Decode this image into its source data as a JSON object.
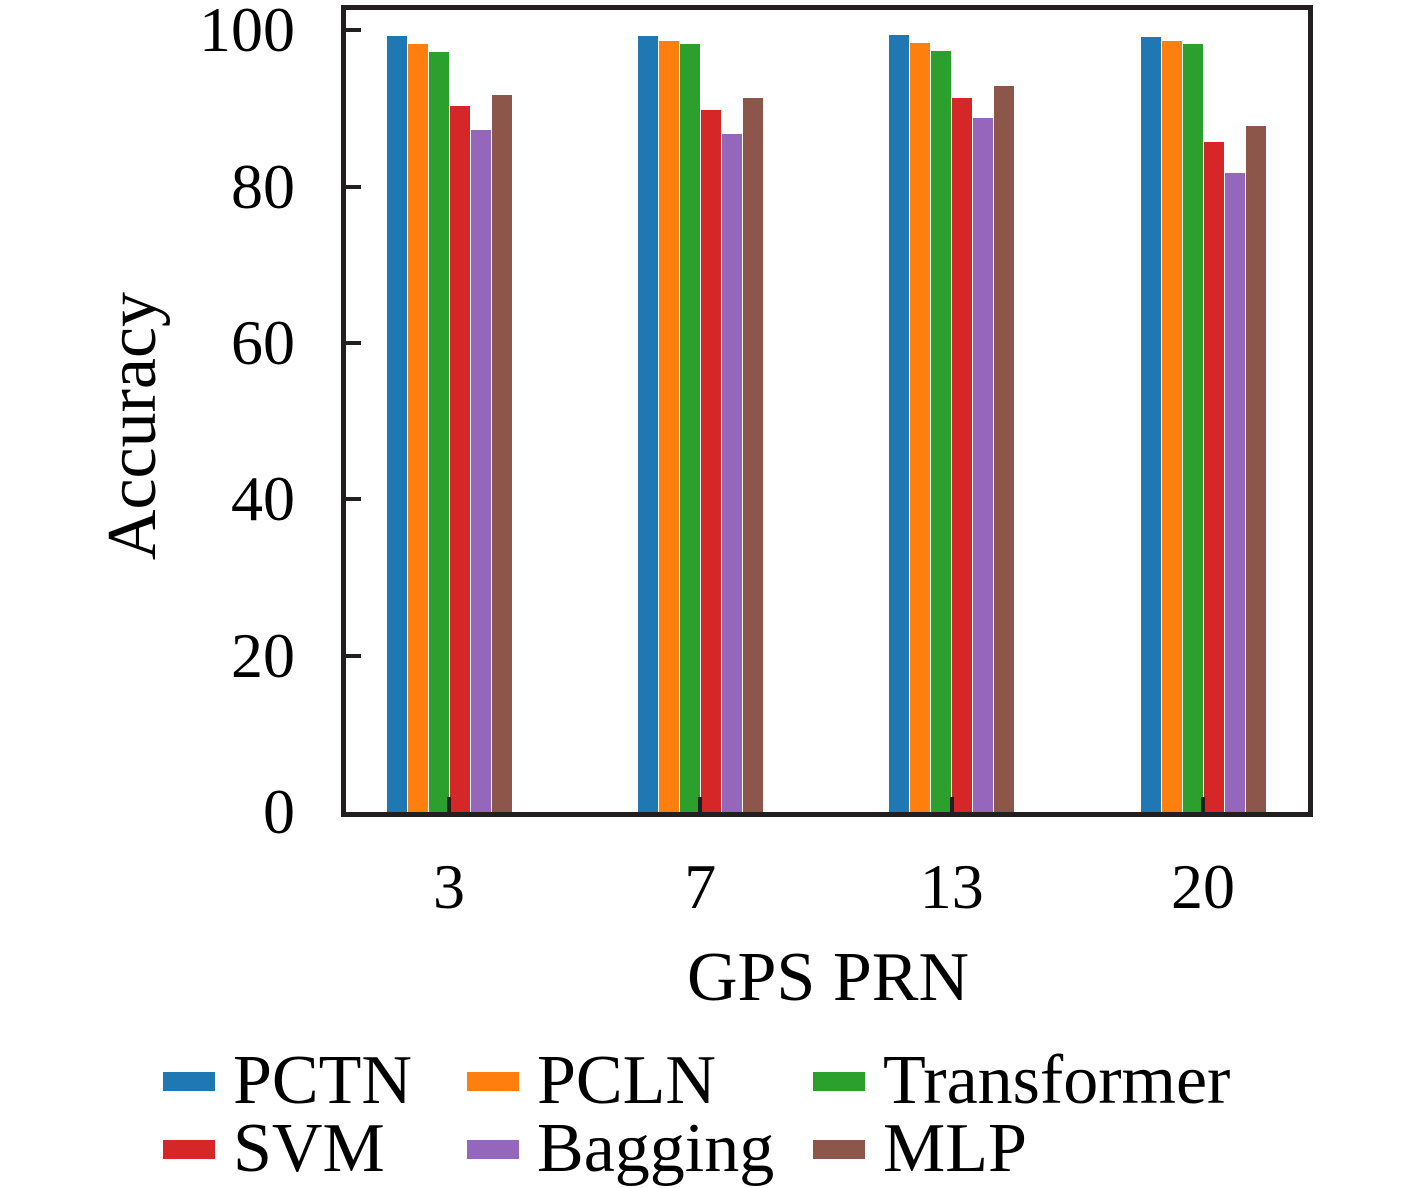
{
  "chart_data": {
    "type": "bar",
    "title": "",
    "xlabel": "GPS PRN",
    "ylabel": "Accuracy",
    "categories": [
      "3",
      "7",
      "13",
      "20"
    ],
    "series": [
      {
        "name": "PCTN",
        "color": "#1f77b4",
        "values": [
          99.3,
          99.3,
          99.4,
          99.2
        ]
      },
      {
        "name": "PCLN",
        "color": "#ff7f0e",
        "values": [
          98.3,
          98.6,
          98.4,
          98.7
        ]
      },
      {
        "name": "Transformer",
        "color": "#2ca02c",
        "values": [
          97.2,
          98.2,
          97.3,
          98.2
        ]
      },
      {
        "name": "SVM",
        "color": "#d62728",
        "values": [
          90.3,
          89.8,
          91.3,
          85.7
        ]
      },
      {
        "name": "Bagging",
        "color": "#9467bd",
        "values": [
          87.3,
          86.7,
          88.8,
          81.8
        ]
      },
      {
        "name": "MLP",
        "color": "#8c564b",
        "values": [
          91.7,
          91.3,
          92.9,
          87.7
        ]
      }
    ],
    "yticks": [
      0,
      20,
      40,
      60,
      80,
      100
    ],
    "ylim": [
      0,
      102.6
    ],
    "grid": false,
    "legend_position": "bottom",
    "legend_columns": 3,
    "axis_color": "#231f20",
    "background_color": "#ffffff"
  }
}
